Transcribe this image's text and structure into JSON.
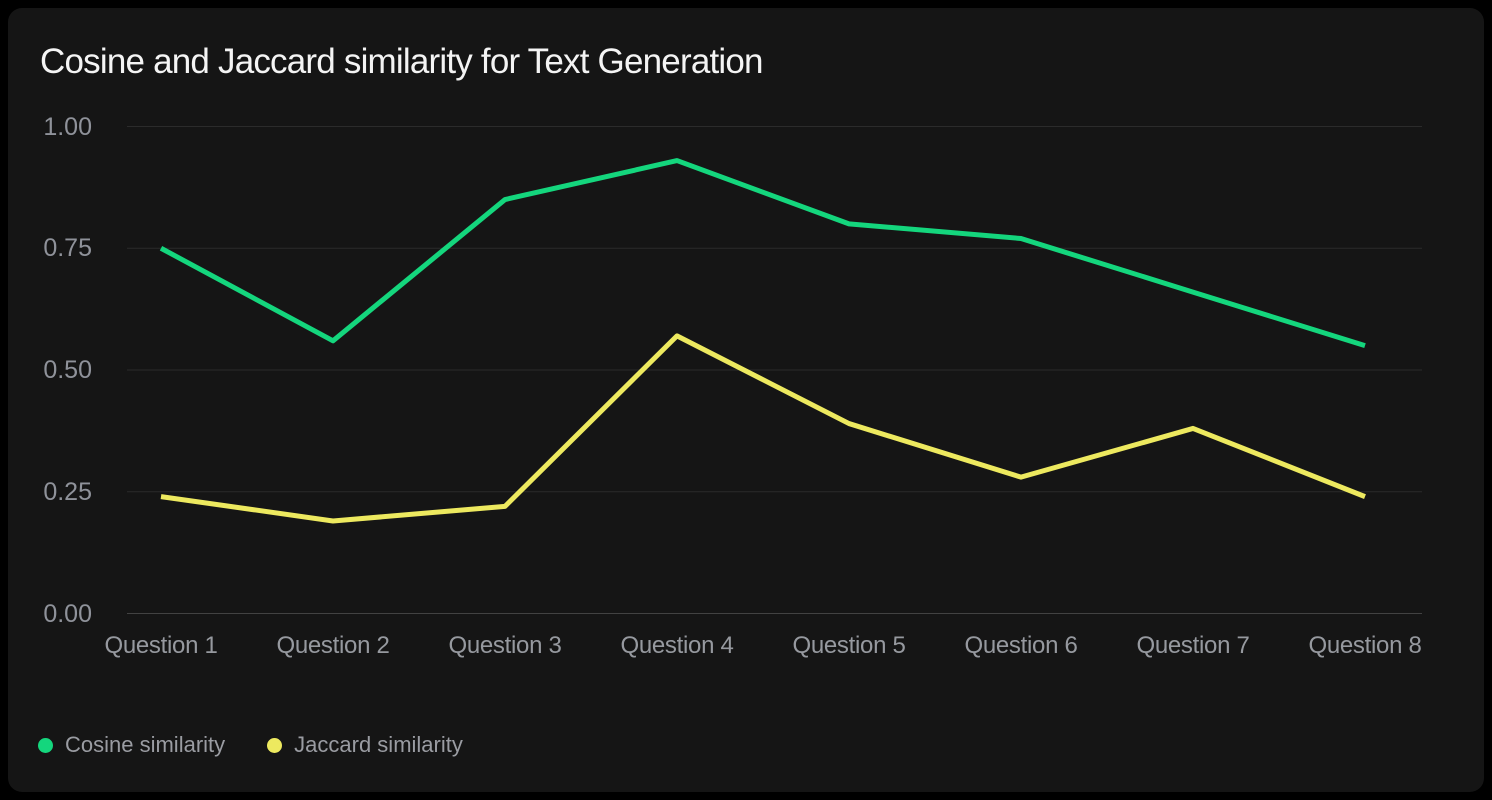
{
  "chart_data": {
    "type": "line",
    "title": "Cosine and Jaccard similarity for Text Generation",
    "categories": [
      "Question 1",
      "Question 2",
      "Question 3",
      "Question 4",
      "Question 5",
      "Question 6",
      "Question 7",
      "Question 8"
    ],
    "series": [
      {
        "name": "Cosine similarity",
        "color": "#14d67d",
        "values": [
          0.75,
          0.56,
          0.85,
          0.93,
          0.8,
          0.77,
          0.66,
          0.55
        ]
      },
      {
        "name": "Jaccard similarity",
        "color": "#ede95f",
        "values": [
          0.24,
          0.19,
          0.22,
          0.57,
          0.39,
          0.28,
          0.38,
          0.24
        ]
      }
    ],
    "xlabel": "",
    "ylabel": "",
    "ylim": [
      0,
      1
    ],
    "y_ticks": [
      {
        "label": "1.00",
        "value": 1.0
      },
      {
        "label": "0.75",
        "value": 0.75
      },
      {
        "label": "0.50",
        "value": 0.5
      },
      {
        "label": "0.25",
        "value": 0.25
      },
      {
        "label": "0.00",
        "value": 0.0
      }
    ],
    "grid": "horizontal",
    "legend_position": "bottom-left"
  },
  "colors": {
    "page_background": "#000000",
    "card_background": "#151515",
    "title_text": "#f4f4f4",
    "axis_text": "#92949a",
    "gridline": "#2b2b2b",
    "baseline": "#424242",
    "cosine_line": "#14d67d",
    "jaccard_line": "#ede95f"
  }
}
